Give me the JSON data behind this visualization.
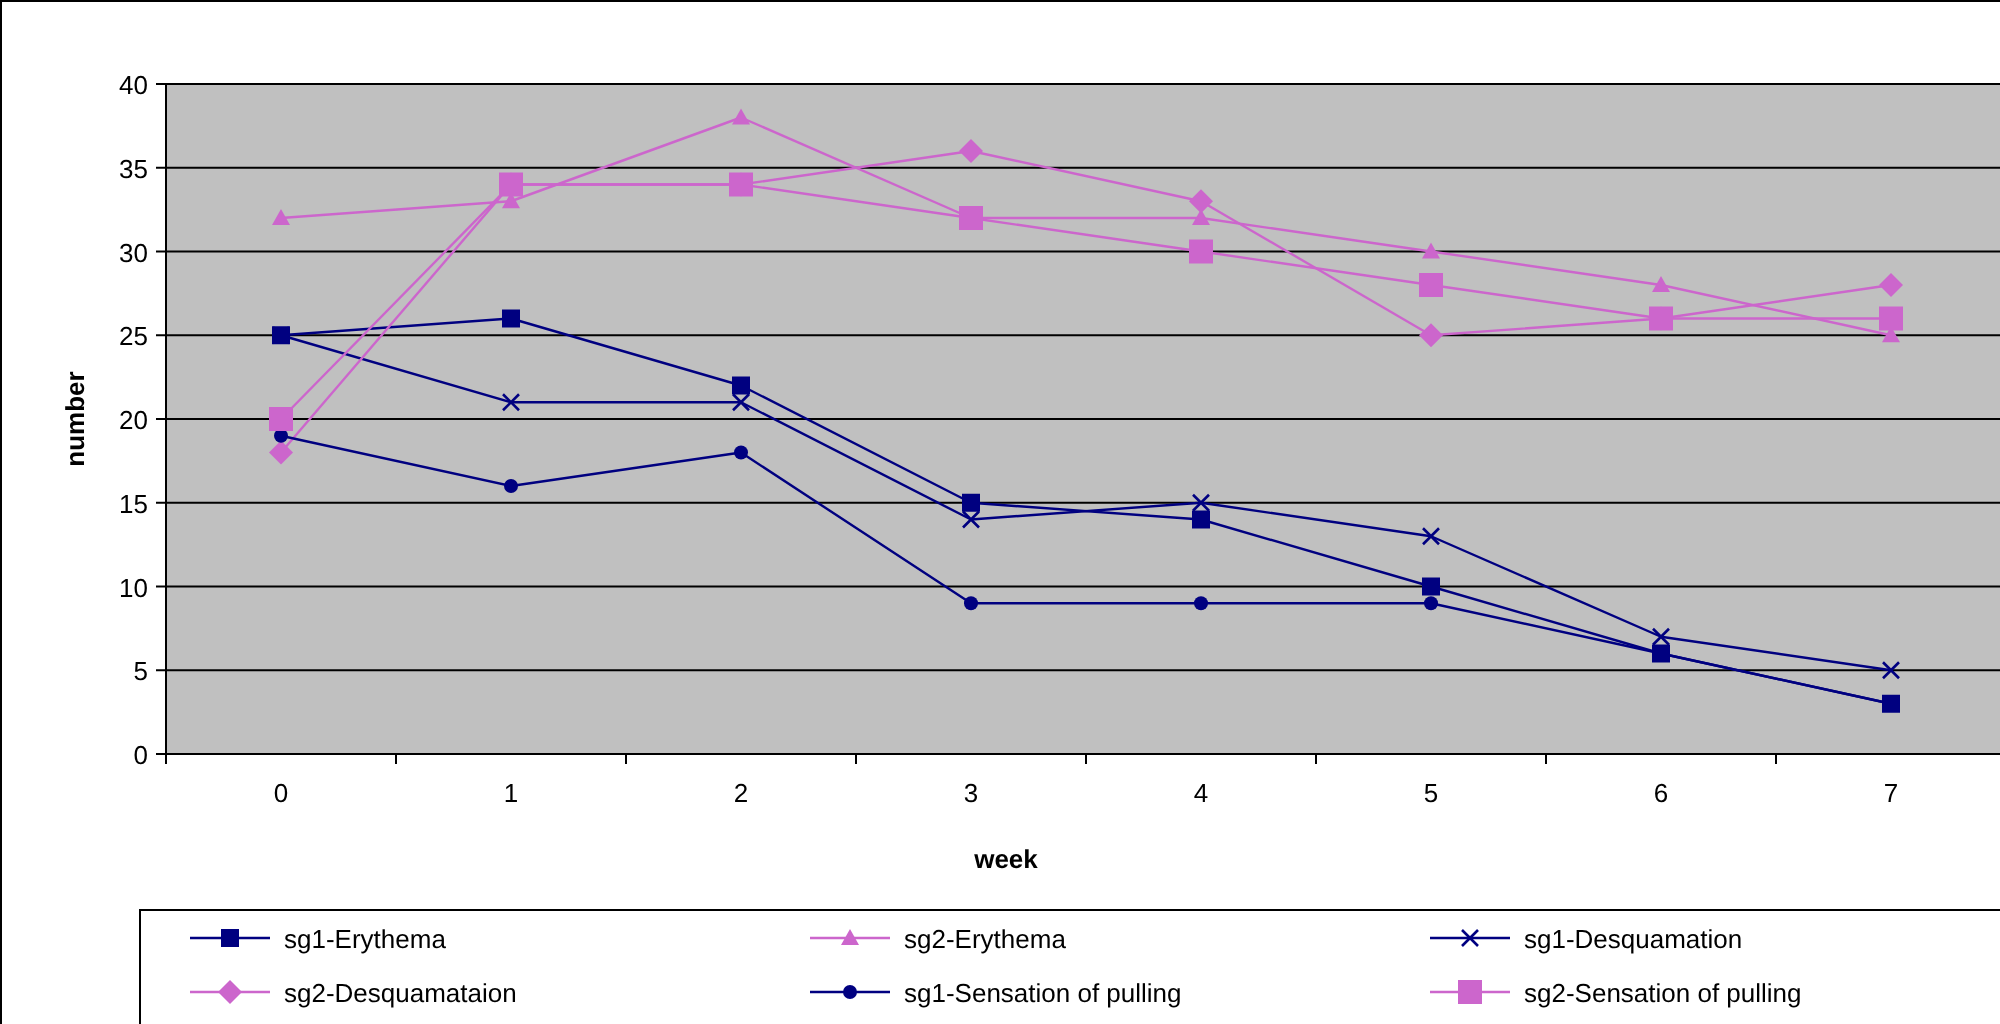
{
  "chart_data": {
    "type": "line",
    "xlabel": "week",
    "ylabel": "number",
    "categories": [
      "0",
      "1",
      "2",
      "3",
      "4",
      "5",
      "6",
      "7"
    ],
    "ylim": [
      0,
      40
    ],
    "yticks": [
      0,
      5,
      10,
      15,
      20,
      25,
      30,
      35,
      40
    ],
    "grid": "y",
    "legend": "bottom",
    "series": [
      {
        "name": "sg1-Erythema",
        "color": "#000080",
        "marker": "square",
        "values": [
          25,
          26,
          22,
          15,
          14,
          10,
          6,
          3
        ]
      },
      {
        "name": "sg2-Erythema",
        "color": "#cc66cc",
        "marker": "triangle",
        "values": [
          32,
          33,
          38,
          32,
          32,
          30,
          28,
          25
        ]
      },
      {
        "name": "sg1-Desquamation",
        "color": "#000080",
        "marker": "cross",
        "values": [
          25,
          21,
          21,
          14,
          15,
          13,
          7,
          5
        ]
      },
      {
        "name": "sg2-Desquamataion",
        "color": "#cc66cc",
        "marker": "diamond",
        "values": [
          18,
          34,
          34,
          36,
          33,
          25,
          26,
          28
        ]
      },
      {
        "name": "sg1-Sensation of pulling",
        "color": "#000080",
        "marker": "circle",
        "values": [
          19,
          16,
          18,
          9,
          9,
          9,
          6,
          3
        ]
      },
      {
        "name": "sg2-Sensation of pulling",
        "color": "#cc66cc",
        "marker": "square",
        "values": [
          20,
          34,
          34,
          32,
          30,
          28,
          26,
          26
        ]
      }
    ]
  }
}
